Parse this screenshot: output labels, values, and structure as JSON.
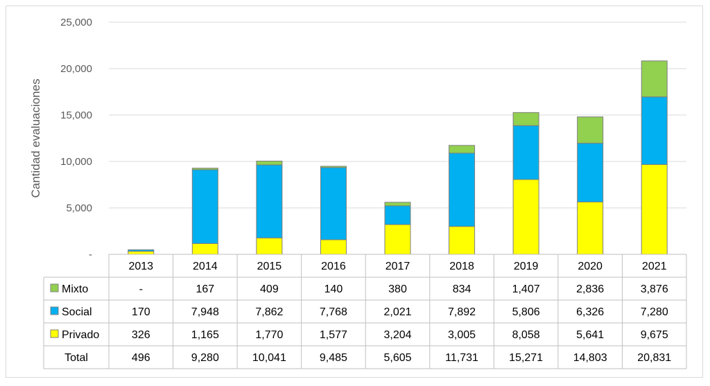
{
  "chart_data": {
    "type": "bar",
    "stacked": true,
    "title": "",
    "xlabel": "",
    "ylabel": "Cantidad evaluaciones",
    "ylim": [
      0,
      25000
    ],
    "y_ticks": [
      0,
      5000,
      10000,
      15000,
      20000,
      25000
    ],
    "y_tick_labels": [
      "-",
      "5,000",
      "10,000",
      "15,000",
      "20,000",
      "25,000"
    ],
    "grid": true,
    "categories": [
      "2013",
      "2014",
      "2015",
      "2016",
      "2017",
      "2018",
      "2019",
      "2020",
      "2021"
    ],
    "series": [
      {
        "name": "Privado",
        "color": "#ffff00",
        "values": [
          326,
          1165,
          1770,
          1577,
          3204,
          3005,
          8058,
          5641,
          9675
        ],
        "labels": [
          "326",
          "1,165",
          "1,770",
          "1,577",
          "3,204",
          "3,005",
          "8,058",
          "5,641",
          "9,675"
        ]
      },
      {
        "name": "Social",
        "color": "#00b0f0",
        "values": [
          170,
          7948,
          7862,
          7768,
          2021,
          7892,
          5806,
          6326,
          7280
        ],
        "labels": [
          "170",
          "7,948",
          "7,862",
          "7,768",
          "2,021",
          "7,892",
          "5,806",
          "6,326",
          "7,280"
        ]
      },
      {
        "name": "Mixto",
        "color": "#92d050",
        "values": [
          0,
          167,
          409,
          140,
          380,
          834,
          1407,
          2836,
          3876
        ],
        "labels": [
          "-",
          "167",
          "409",
          "140",
          "380",
          "834",
          "1,407",
          "2,836",
          "3,876"
        ]
      }
    ],
    "data_table": {
      "row_order": [
        "Mixto",
        "Social",
        "Privado"
      ],
      "total_label": "Total",
      "totals": [
        "496",
        "9,280",
        "10,041",
        "9,485",
        "5,605",
        "11,731",
        "15,271",
        "14,803",
        "20,831"
      ]
    }
  }
}
